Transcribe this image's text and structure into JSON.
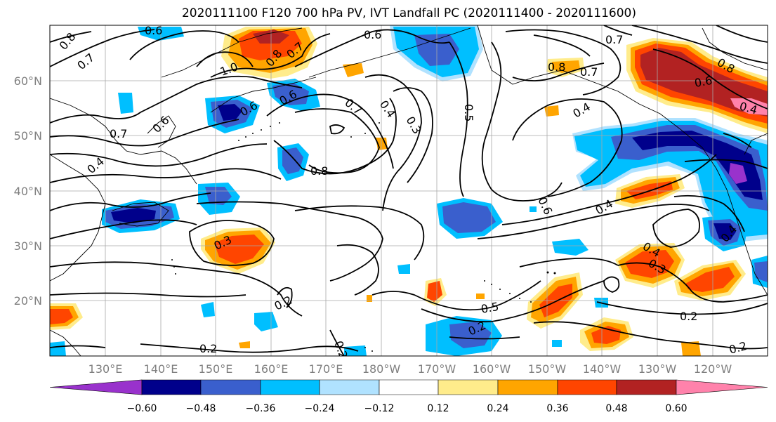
{
  "title": "2020111100 F120 700 hPa PV, IVT Landfall PC (2020111400 - 2020111600)",
  "map": {
    "lat_ticks": [
      "60°N",
      "50°N",
      "40°N",
      "30°N",
      "20°N"
    ],
    "lon_ticks": [
      "130°E",
      "140°E",
      "150°E",
      "160°E",
      "170°E",
      "180°W",
      "170°W",
      "160°W",
      "150°W",
      "140°W",
      "130°W",
      "120°W"
    ],
    "contour_labels": [
      {
        "text": "0.6"
      },
      {
        "text": "0.8"
      },
      {
        "text": "0.7"
      },
      {
        "text": "1.0"
      },
      {
        "text": "0.8"
      },
      {
        "text": "0.7"
      },
      {
        "text": "0.6"
      },
      {
        "text": "0.6"
      },
      {
        "text": "0.7"
      },
      {
        "text": "0.6"
      },
      {
        "text": "0.6"
      },
      {
        "text": "0.7"
      },
      {
        "text": "0.4"
      },
      {
        "text": "0.3"
      },
      {
        "text": "0.5"
      },
      {
        "text": "0.8"
      },
      {
        "text": "0.8"
      },
      {
        "text": "0.7"
      },
      {
        "text": "0.7"
      },
      {
        "text": "0.8"
      },
      {
        "text": "0.6"
      },
      {
        "text": "0.4"
      },
      {
        "text": "0.4"
      },
      {
        "text": "0.4"
      },
      {
        "text": "0.6"
      },
      {
        "text": "0.4"
      },
      {
        "text": "0.3"
      },
      {
        "text": "0.4"
      },
      {
        "text": "0.4"
      },
      {
        "text": "0.3"
      },
      {
        "text": "0.2"
      },
      {
        "text": "0.5"
      },
      {
        "text": "0.2"
      },
      {
        "text": "0.2"
      },
      {
        "text": "0.2"
      }
    ]
  },
  "colorbar": {
    "ticks": [
      "−0.60",
      "−0.48",
      "−0.36",
      "−0.24",
      "−0.12",
      "0.12",
      "0.24",
      "0.36",
      "0.48",
      "0.60"
    ],
    "colors": [
      "#9932CC",
      "#00008B",
      "#3A5FCD",
      "#00BFFF",
      "#B0E2FF",
      "#FFFFFF",
      "#FFEC8B",
      "#FFA500",
      "#FF4500",
      "#B22222",
      "#FF82AB"
    ]
  }
}
